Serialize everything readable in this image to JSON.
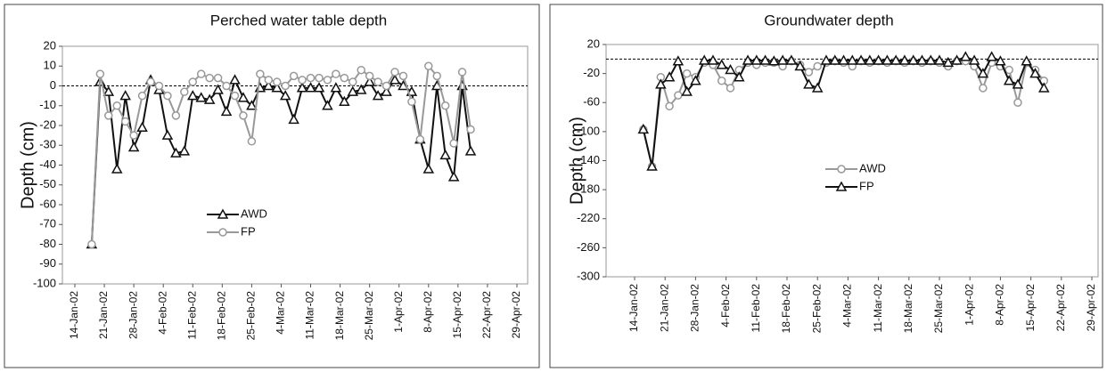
{
  "chart_data": [
    {
      "type": "line",
      "title": "Perched water table  depth",
      "y_label": "Depth (cm)",
      "x": [
        "18-Jan-02",
        "20-Jan-02",
        "22-Jan-02",
        "24-Jan-02",
        "26-Jan-02",
        "28-Jan-02",
        "30-Jan-02",
        "1-Feb-02",
        "3-Feb-02",
        "5-Feb-02",
        "7-Feb-02",
        "9-Feb-02",
        "11-Feb-02",
        "13-Feb-02",
        "15-Feb-02",
        "17-Feb-02",
        "19-Feb-02",
        "21-Feb-02",
        "23-Feb-02",
        "25-Feb-02",
        "27-Feb-02",
        "1-Mar-02",
        "3-Mar-02",
        "5-Mar-02",
        "7-Mar-02",
        "9-Mar-02",
        "11-Mar-02",
        "13-Mar-02",
        "15-Mar-02",
        "17-Mar-02",
        "19-Mar-02",
        "21-Mar-02",
        "23-Mar-02",
        "25-Mar-02",
        "27-Mar-02",
        "29-Mar-02",
        "31-Mar-02",
        "2-Apr-02",
        "4-Apr-02",
        "6-Apr-02",
        "8-Apr-02",
        "10-Apr-02",
        "12-Apr-02",
        "14-Apr-02",
        "16-Apr-02",
        "18-Apr-02"
      ],
      "series": [
        {
          "name": "AWD",
          "color": "#111111",
          "marker": "triangle",
          "values": [
            -80,
            2,
            -3,
            -42,
            -5,
            -31,
            -21,
            3,
            -2,
            -25,
            -34,
            -33,
            -5,
            -6,
            -7,
            -2,
            -13,
            3,
            -6,
            -10,
            -1,
            0,
            -1,
            -5,
            -17,
            -1,
            -1,
            -1,
            -10,
            -1,
            -8,
            -3,
            -2,
            2,
            -5,
            -3,
            3,
            0,
            -3,
            -27,
            -42,
            0,
            -35,
            -46,
            0,
            -33
          ]
        },
        {
          "name": "FP",
          "color": "#999999",
          "marker": "circle",
          "values": [
            -80,
            6,
            -15,
            -10,
            -18,
            -25,
            -5,
            2,
            0,
            -5,
            -15,
            -3,
            2,
            6,
            4,
            4,
            0,
            -5,
            -15,
            -28,
            6,
            3,
            2,
            0,
            5,
            3,
            4,
            4,
            3,
            6,
            4,
            2,
            8,
            5,
            2,
            0,
            7,
            5,
            -8,
            -27,
            10,
            5,
            -10,
            -29,
            7,
            -22
          ]
        }
      ],
      "xlim": [
        "14-Jan-02",
        "29-Apr-02"
      ],
      "xticks": [
        "14-Jan-02",
        "21-Jan-02",
        "28-Jan-02",
        "4-Feb-02",
        "11-Feb-02",
        "18-Feb-02",
        "25-Feb-02",
        "4-Mar-02",
        "11-Mar-02",
        "18-Mar-02",
        "25-Mar-02",
        "1-Apr-02",
        "8-Apr-02",
        "15-Apr-02",
        "22-Apr-02",
        "29-Apr-02"
      ],
      "ylim": [
        -100,
        20
      ],
      "yticks": [
        -100,
        -90,
        -80,
        -70,
        -60,
        -50,
        -40,
        -30,
        -20,
        -10,
        0,
        10,
        20
      ],
      "reference_line": 0,
      "legend": "center"
    },
    {
      "type": "line",
      "title": "Groundwater  depth",
      "y_label": "Depth (cm)",
      "x": [
        "16-Jan-02",
        "18-Jan-02",
        "20-Jan-02",
        "22-Jan-02",
        "24-Jan-02",
        "26-Jan-02",
        "28-Jan-02",
        "30-Jan-02",
        "1-Feb-02",
        "3-Feb-02",
        "5-Feb-02",
        "7-Feb-02",
        "9-Feb-02",
        "11-Feb-02",
        "13-Feb-02",
        "15-Feb-02",
        "17-Feb-02",
        "19-Feb-02",
        "21-Feb-02",
        "23-Feb-02",
        "25-Feb-02",
        "27-Feb-02",
        "1-Mar-02",
        "3-Mar-02",
        "5-Mar-02",
        "7-Mar-02",
        "9-Mar-02",
        "11-Mar-02",
        "13-Mar-02",
        "15-Mar-02",
        "17-Mar-02",
        "19-Mar-02",
        "21-Mar-02",
        "23-Mar-02",
        "25-Mar-02",
        "27-Mar-02",
        "29-Mar-02",
        "31-Mar-02",
        "2-Apr-02",
        "4-Apr-02",
        "6-Apr-02",
        "8-Apr-02",
        "10-Apr-02",
        "12-Apr-02",
        "14-Apr-02",
        "16-Apr-02",
        "18-Apr-02"
      ],
      "series": [
        {
          "name": "AWD",
          "color": "#999999",
          "marker": "circle",
          "values": [
            -97,
            -148,
            -25,
            -65,
            -50,
            -20,
            -25,
            -5,
            -8,
            -30,
            -40,
            -15,
            -5,
            -8,
            -5,
            -5,
            -10,
            -3,
            -8,
            -18,
            -10,
            -5,
            -3,
            -5,
            -10,
            -3,
            -5,
            -3,
            -5,
            -3,
            -5,
            -3,
            -5,
            -3,
            -5,
            -10,
            -3,
            -3,
            -10,
            -40,
            -5,
            -10,
            -15,
            -60,
            -5,
            -15,
            -30
          ]
        },
        {
          "name": "FP",
          "color": "#111111",
          "marker": "triangle",
          "values": [
            -97,
            -148,
            -35,
            -25,
            -3,
            -45,
            -30,
            -2,
            -2,
            -8,
            -15,
            -25,
            -2,
            -2,
            -2,
            -3,
            -2,
            -2,
            -10,
            -35,
            -40,
            -2,
            -2,
            -2,
            -2,
            -2,
            -2,
            -2,
            -2,
            -2,
            -2,
            -2,
            -2,
            -2,
            -2,
            -5,
            -2,
            3,
            -2,
            -20,
            3,
            -3,
            -30,
            -35,
            -3,
            -20,
            -40
          ]
        }
      ],
      "xlim": [
        "14-Jan-02",
        "29-Apr-02"
      ],
      "xticks": [
        "14-Jan-02",
        "21-Jan-02",
        "28-Jan-02",
        "4-Feb-02",
        "11-Feb-02",
        "18-Feb-02",
        "25-Feb-02",
        "4-Mar-02",
        "11-Mar-02",
        "18-Mar-02",
        "25-Mar-02",
        "1-Apr-02",
        "8-Apr-02",
        "15-Apr-02",
        "22-Apr-02",
        "29-Apr-02"
      ],
      "ylim": [
        -300,
        20
      ],
      "yticks": [
        -300,
        -260,
        -220,
        -180,
        -140,
        -100,
        -60,
        -20,
        20
      ],
      "reference_line": 0,
      "legend": "center"
    }
  ]
}
